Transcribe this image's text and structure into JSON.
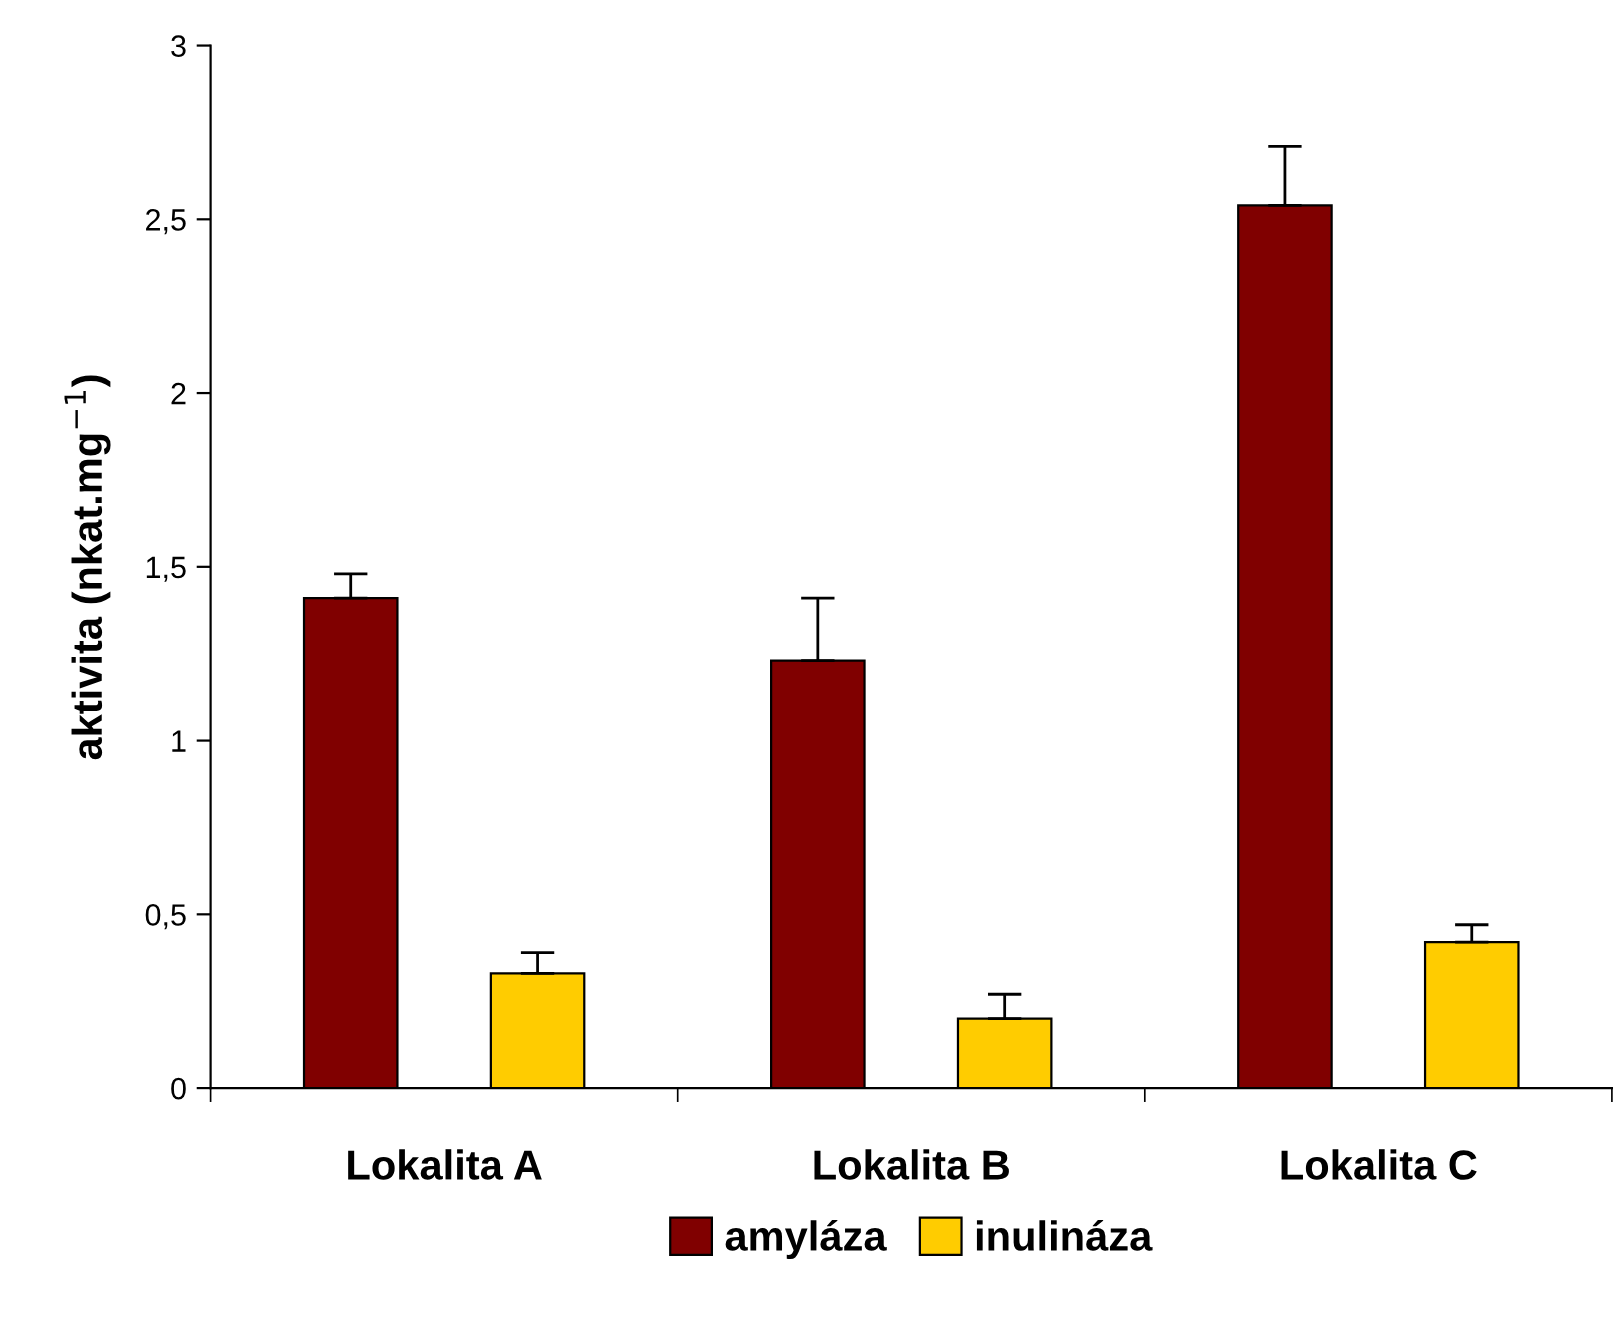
{
  "chart_data": {
    "type": "bar",
    "ylabel": "aktivita (nkat.mg$^{−1}$)",
    "categories": [
      "Lokalita A",
      "Lokalita B",
      "Lokalita C"
    ],
    "series": [
      {
        "name": "amyláza",
        "color": "#800000",
        "values": [
          1.41,
          1.23,
          2.54
        ],
        "errors": [
          [
            1.41,
            1.48
          ],
          [
            1.23,
            1.41
          ],
          [
            2.54,
            2.71
          ]
        ]
      },
      {
        "name": "inulináza",
        "color": "#ffcc00",
        "values": [
          0.33,
          0.2,
          0.42
        ],
        "errors": [
          [
            0.33,
            0.39
          ],
          [
            0.2,
            0.27
          ],
          [
            0.42,
            0.47
          ]
        ]
      }
    ],
    "ylim": [
      0,
      3
    ],
    "yticks": [
      0,
      {
        "value": 0.5,
        "label": "0,5"
      },
      1,
      {
        "value": 1.5,
        "label": "1,5"
      },
      2,
      {
        "value": 2.5,
        "label": "2,5"
      },
      3
    ],
    "grid": false,
    "legend": "bottom"
  }
}
